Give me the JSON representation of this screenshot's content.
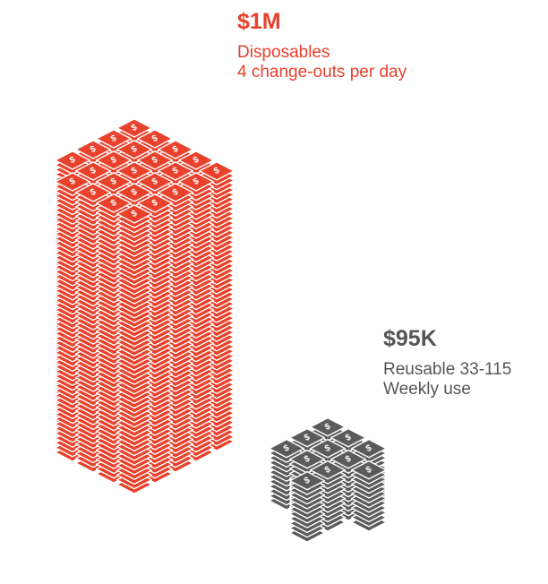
{
  "colors": {
    "disposable": "#e8412c",
    "disposable_edge": "#ffffff",
    "reusable": "#5b5b5b",
    "reusable_edge": "#ffffff",
    "bill_symbol": "#ffffff"
  },
  "disposable": {
    "amount": "$1M",
    "line1": "Disposables",
    "line2": "4 change-outs per day"
  },
  "reusable": {
    "amount": "$95K",
    "line1": "Reusable 33-115",
    "line2": "Weekly use"
  },
  "bill_symbol": "$"
}
